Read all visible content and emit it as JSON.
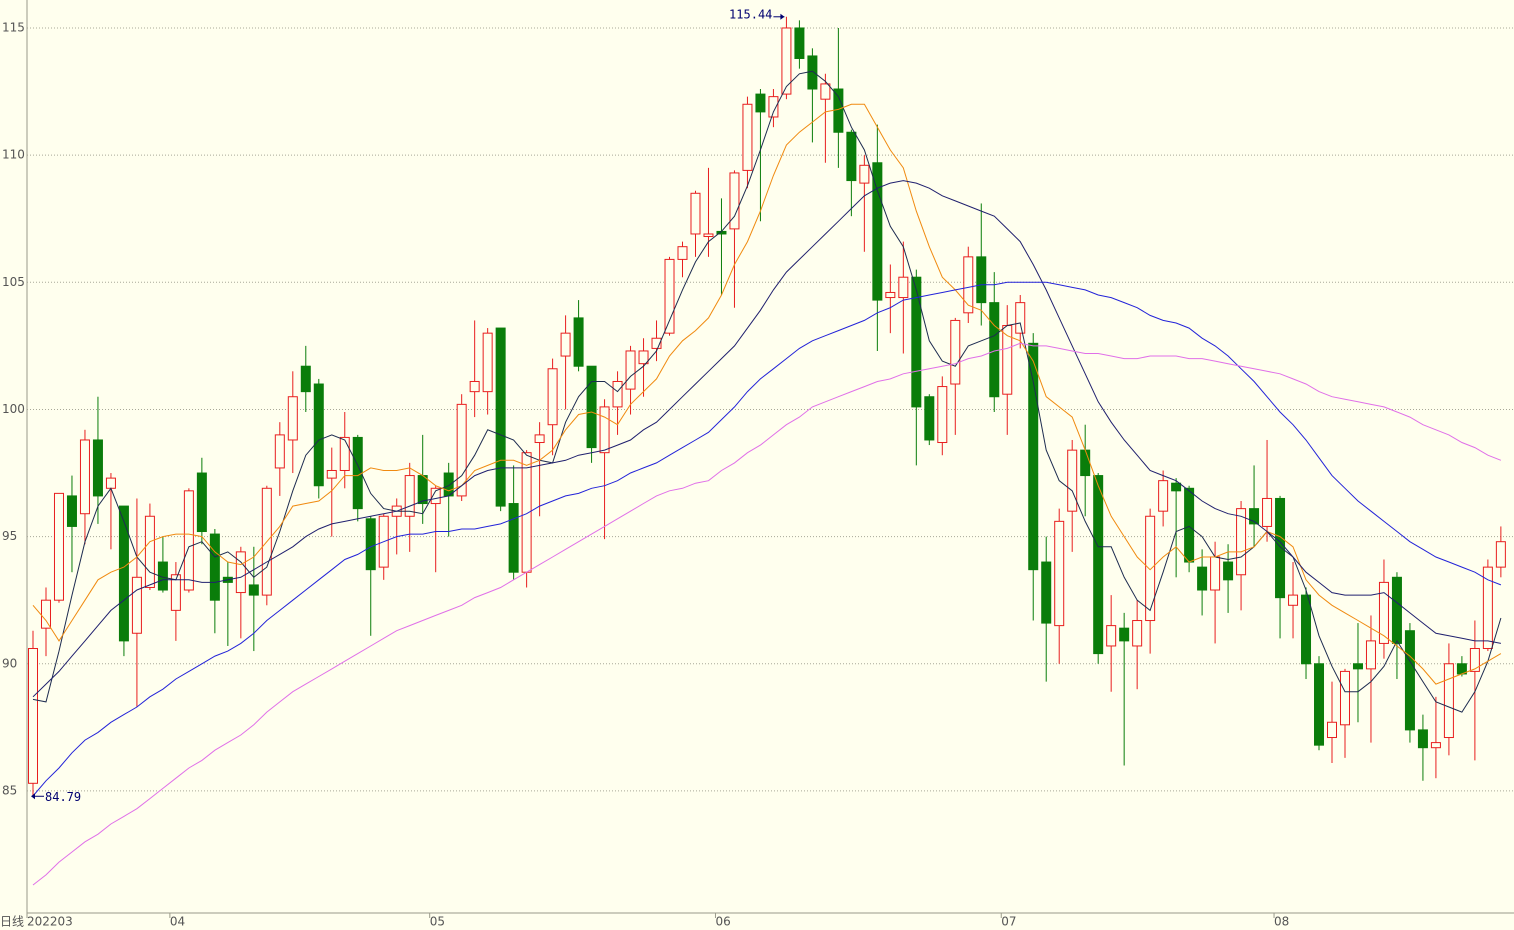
{
  "chart_data": {
    "type": "candlestick",
    "period_label": "日线",
    "categories": [
      "202203",
      null,
      null,
      null,
      null,
      null,
      null,
      null,
      null,
      null,
      null,
      "04",
      null,
      null,
      null,
      null,
      null,
      null,
      null,
      null,
      null,
      null,
      null,
      null,
      null,
      null,
      null,
      null,
      null,
      null,
      null,
      "05",
      null,
      null,
      null,
      null,
      null,
      null,
      null,
      null,
      null,
      null,
      null,
      null,
      null,
      null,
      null,
      null,
      null,
      null,
      null,
      null,
      null,
      "06",
      null,
      null,
      null,
      null,
      null,
      null,
      null,
      null,
      null,
      null,
      null,
      null,
      null,
      null,
      null,
      null,
      null,
      null,
      null,
      null,
      null,
      "07",
      null,
      null,
      null,
      null,
      null,
      null,
      null,
      null,
      null,
      null,
      null,
      null,
      null,
      null,
      null,
      null,
      null,
      null,
      null,
      null,
      "08",
      null,
      null,
      null,
      null,
      null,
      null,
      null,
      null,
      null,
      null,
      null,
      null,
      null,
      null,
      null,
      null,
      null
    ],
    "open": [
      85.3,
      91.4,
      92.5,
      96.6,
      95.9,
      98.8,
      96.9,
      96.2,
      91.2,
      93.0,
      94.0,
      92.1,
      92.9,
      97.5,
      95.1,
      93.4,
      92.8,
      93.1,
      92.7,
      97.7,
      98.8,
      101.7,
      101.0,
      97.3,
      97.6,
      98.9,
      95.7,
      93.8,
      95.8,
      95.8,
      97.4,
      96.3,
      97.5,
      96.6,
      100.7,
      100.7,
      103.2,
      96.3,
      93.6,
      98.7,
      99.4,
      102.1,
      103.6,
      101.7,
      98.3,
      100.1,
      100.8,
      101.8,
      102.4,
      103.0,
      105.9,
      106.9,
      106.8,
      107.0,
      107.1,
      109.4,
      112.4,
      111.5,
      112.4,
      115.0,
      113.9,
      112.2,
      112.6,
      110.9,
      108.9,
      109.7,
      104.4,
      104.4,
      105.2,
      100.5,
      98.7,
      101.0,
      103.8,
      106.0,
      104.2,
      100.6,
      103.0,
      102.6,
      94.0,
      91.5,
      96.0,
      98.4,
      97.4,
      90.7,
      91.4,
      90.7,
      91.7,
      96.0,
      97.1,
      96.9,
      93.8,
      92.9,
      94.0,
      93.5,
      96.1,
      95.4,
      96.5,
      92.3,
      92.7,
      90.0,
      87.1,
      87.6,
      90.0,
      89.8,
      90.8,
      93.4,
      91.3,
      87.4,
      86.7,
      87.1,
      90.0,
      89.7,
      90.6,
      93.8
    ],
    "high": [
      91.3,
      93.0,
      96.7,
      97.4,
      99.2,
      100.5,
      97.5,
      96.2,
      96.5,
      96.3,
      95.0,
      94.0,
      96.9,
      98.1,
      95.3,
      94.0,
      94.6,
      94.6,
      97.0,
      99.5,
      101.5,
      102.5,
      101.2,
      98.5,
      99.9,
      99.0,
      95.8,
      95.9,
      96.5,
      97.9,
      99.0,
      97.0,
      97.9,
      100.6,
      103.5,
      103.2,
      103.2,
      97.8,
      98.4,
      99.5,
      102.0,
      103.7,
      104.3,
      101.7,
      100.4,
      101.5,
      102.5,
      102.8,
      103.5,
      106.0,
      106.6,
      108.6,
      109.5,
      108.3,
      109.4,
      112.3,
      112.6,
      112.6,
      115.44,
      115.3,
      114.2,
      113.2,
      115.0,
      111.0,
      110.0,
      111.2,
      105.7,
      106.6,
      105.5,
      100.6,
      101.3,
      103.6,
      106.4,
      108.1,
      105.4,
      104.1,
      104.5,
      103.0,
      95.0,
      96.1,
      98.8,
      99.4,
      97.5,
      92.7,
      92.0,
      92.5,
      96.1,
      97.6,
      97.3,
      97.0,
      94.5,
      94.8,
      94.7,
      96.4,
      97.8,
      98.8,
      96.6,
      94.0,
      93.0,
      90.3,
      89.3,
      89.8,
      91.6,
      91.9,
      94.1,
      93.6,
      91.6,
      88.0,
      88.7,
      90.8,
      90.3,
      91.7,
      94.1,
      95.4
    ],
    "low": [
      84.79,
      90.3,
      92.4,
      93.6,
      94.7,
      95.5,
      94.5,
      90.3,
      88.3,
      92.9,
      92.8,
      90.9,
      92.8,
      94.7,
      91.2,
      90.7,
      91.0,
      90.5,
      92.3,
      96.6,
      97.5,
      99.9,
      96.5,
      95.0,
      96.9,
      95.6,
      91.1,
      93.3,
      94.3,
      94.4,
      95.5,
      93.6,
      95.0,
      96.4,
      99.7,
      99.8,
      96.0,
      93.3,
      93.0,
      95.8,
      98.2,
      100.0,
      101.5,
      97.9,
      94.9,
      99.0,
      99.8,
      100.5,
      101.9,
      102.9,
      105.2,
      106.0,
      106.0,
      104.5,
      104.0,
      108.7,
      107.4,
      111.1,
      112.2,
      113.4,
      110.5,
      109.7,
      109.5,
      107.6,
      106.2,
      102.3,
      103.0,
      102.2,
      97.8,
      98.6,
      98.2,
      99.0,
      103.4,
      103.3,
      99.9,
      99.0,
      102.4,
      91.7,
      89.3,
      90.0,
      94.4,
      95.8,
      90.0,
      88.9,
      86.0,
      89.0,
      90.4,
      95.4,
      93.4,
      93.6,
      91.9,
      90.8,
      92.0,
      92.1,
      94.6,
      94.8,
      91.0,
      91.0,
      89.4,
      86.6,
      86.1,
      86.3,
      87.7,
      86.9,
      90.2,
      89.4,
      86.9,
      85.4,
      85.5,
      86.4,
      89.5,
      86.2,
      90.5,
      93.4
    ],
    "close": [
      90.6,
      92.5,
      96.7,
      95.4,
      98.8,
      96.6,
      97.3,
      90.9,
      93.4,
      95.8,
      92.9,
      93.5,
      96.8,
      95.2,
      92.5,
      93.2,
      94.4,
      92.7,
      96.9,
      99.0,
      100.5,
      100.7,
      97.0,
      97.6,
      98.9,
      96.1,
      93.7,
      95.8,
      96.2,
      97.4,
      96.3,
      96.9,
      96.6,
      100.2,
      101.1,
      103.0,
      96.2,
      93.6,
      98.3,
      99.0,
      101.6,
      103.0,
      101.7,
      98.5,
      100.1,
      101.1,
      102.3,
      102.3,
      102.8,
      105.9,
      106.4,
      108.5,
      106.9,
      106.9,
      109.3,
      112.0,
      111.7,
      112.3,
      115.0,
      113.8,
      112.6,
      112.8,
      110.9,
      109.0,
      109.6,
      104.3,
      104.6,
      105.2,
      100.1,
      98.8,
      100.9,
      103.5,
      106.0,
      104.2,
      100.5,
      103.3,
      104.2,
      93.7,
      91.6,
      95.6,
      98.4,
      97.4,
      90.4,
      91.5,
      90.9,
      91.7,
      95.8,
      97.2,
      96.8,
      94.0,
      92.9,
      94.2,
      93.3,
      96.1,
      95.5,
      96.5,
      92.6,
      92.7,
      90.0,
      86.8,
      87.7,
      89.7,
      89.8,
      90.9,
      93.2,
      90.8,
      87.4,
      86.7,
      86.9,
      90.0,
      89.6,
      90.6,
      93.8,
      94.8
    ],
    "up_color": "#e81e1e",
    "down_color": "#0a7d0a",
    "lines": [
      {
        "color": "#1e2c50",
        "values": [
          88.6,
          88.5,
          90.5,
          92.7,
          94.8,
          96.2,
          96.9,
          95.6,
          94.2,
          93.6,
          93.4,
          93.3,
          94.6,
          94.8,
          94.2,
          94.4,
          94.0,
          93.4,
          93.8,
          95.2,
          96.8,
          98.2,
          98.8,
          99.0,
          98.8,
          97.8,
          96.7,
          96.1,
          96.0,
          96.0,
          95.9,
          96.8,
          97.0,
          97.4,
          98.2,
          99.2,
          99.0,
          98.8,
          98.2,
          98.0,
          97.9,
          99.5,
          100.5,
          101.1,
          101.1,
          100.7,
          101.3,
          101.7,
          102.3,
          103.5,
          104.7,
          105.8,
          106.6,
          107.0,
          107.6,
          108.8,
          110.2,
          111.7,
          112.7,
          113.2,
          113.3,
          112.9,
          112.3,
          111.1,
          110.2,
          108.6,
          107.2,
          106.4,
          104.7,
          102.7,
          101.9,
          101.7,
          102.5,
          102.7,
          102.9,
          103.3,
          103.4,
          101.1,
          98.4,
          97.2,
          96.8,
          95.6,
          94.6,
          94.6,
          93.4,
          92.5,
          92.1,
          93.6,
          95.2,
          95.4,
          95.0,
          94.2,
          94.1,
          94.2,
          94.6,
          95.2,
          94.6,
          94.2,
          92.9,
          91.1,
          89.9,
          88.9,
          88.9,
          89.3,
          89.9,
          90.9,
          90.1,
          89.3,
          88.5,
          88.3,
          88.1,
          88.9,
          90.1,
          91.8
        ]
      },
      {
        "color": "#f08a10",
        "values": [
          92.3,
          91.7,
          90.9,
          91.7,
          92.5,
          93.3,
          93.6,
          93.8,
          94.2,
          94.8,
          95.0,
          95.1,
          95.1,
          95.0,
          94.4,
          94.0,
          93.9,
          94.2,
          94.8,
          95.4,
          96.2,
          96.3,
          96.4,
          96.8,
          97.4,
          97.4,
          97.7,
          97.6,
          97.6,
          97.7,
          97.4,
          97.0,
          96.8,
          97.0,
          97.6,
          97.8,
          98.0,
          98.0,
          97.8,
          98.0,
          98.4,
          99.2,
          99.8,
          99.9,
          99.7,
          99.4,
          100.2,
          100.7,
          101.2,
          102.1,
          102.7,
          103.1,
          103.6,
          104.5,
          105.7,
          106.6,
          107.8,
          109.2,
          110.4,
          110.9,
          111.3,
          111.7,
          111.8,
          112.0,
          112.0,
          111.1,
          110.2,
          109.5,
          107.8,
          106.4,
          105.2,
          104.7,
          104.1,
          103.9,
          103.3,
          102.9,
          102.7,
          101.9,
          100.5,
          100.1,
          99.7,
          98.4,
          97.0,
          95.8,
          95.0,
          94.2,
          93.7,
          94.2,
          94.6,
          94.0,
          94.2,
          94.2,
          94.4,
          94.4,
          94.6,
          95.2,
          95.0,
          94.6,
          93.3,
          92.7,
          92.3,
          92.0,
          91.7,
          91.4,
          91.1,
          90.7,
          90.3,
          89.8,
          89.2,
          89.4,
          89.6,
          89.8,
          90.1,
          90.4
        ]
      },
      {
        "color": "#20206e",
        "values": [
          88.7,
          89.2,
          89.7,
          90.3,
          90.9,
          91.5,
          92.1,
          92.5,
          92.9,
          93.1,
          93.3,
          93.3,
          93.3,
          93.2,
          93.2,
          93.3,
          93.4,
          93.7,
          94.0,
          94.3,
          94.6,
          95.0,
          95.3,
          95.5,
          95.6,
          95.7,
          95.8,
          95.9,
          96.0,
          96.2,
          96.4,
          96.5,
          96.6,
          97.0,
          97.4,
          97.6,
          97.7,
          97.7,
          97.7,
          97.8,
          97.9,
          98.0,
          98.2,
          98.3,
          98.4,
          98.6,
          98.8,
          99.2,
          99.5,
          100.0,
          100.5,
          101.0,
          101.5,
          102.0,
          102.5,
          103.2,
          103.9,
          104.7,
          105.4,
          105.9,
          106.4,
          106.9,
          107.4,
          107.9,
          108.4,
          108.7,
          108.9,
          109.0,
          108.9,
          108.7,
          108.4,
          108.2,
          108.0,
          107.8,
          107.6,
          107.1,
          106.6,
          105.7,
          104.7,
          103.6,
          102.5,
          101.4,
          100.3,
          99.5,
          98.8,
          98.2,
          97.6,
          97.4,
          97.2,
          96.8,
          96.4,
          96.1,
          95.9,
          95.8,
          95.6,
          95.2,
          94.8,
          94.2,
          93.6,
          93.2,
          92.8,
          92.7,
          92.7,
          92.7,
          92.8,
          92.4,
          92.0,
          91.6,
          91.2,
          91.1,
          91.0,
          90.9,
          90.9,
          90.8
        ]
      },
      {
        "color": "#2323d8",
        "values": [
          84.8,
          85.4,
          85.9,
          86.5,
          87.0,
          87.3,
          87.7,
          88.0,
          88.3,
          88.7,
          89.0,
          89.4,
          89.7,
          90.0,
          90.3,
          90.5,
          90.8,
          91.2,
          91.7,
          92.1,
          92.5,
          92.9,
          93.3,
          93.7,
          94.1,
          94.3,
          94.6,
          94.8,
          95.0,
          95.1,
          95.1,
          95.2,
          95.2,
          95.3,
          95.3,
          95.4,
          95.5,
          95.7,
          95.9,
          96.2,
          96.4,
          96.6,
          96.7,
          96.9,
          97.0,
          97.2,
          97.5,
          97.7,
          97.9,
          98.2,
          98.5,
          98.8,
          99.1,
          99.6,
          100.1,
          100.7,
          101.2,
          101.6,
          102.0,
          102.4,
          102.7,
          102.9,
          103.1,
          103.3,
          103.5,
          103.8,
          104.0,
          104.3,
          104.4,
          104.5,
          104.6,
          104.7,
          104.8,
          104.9,
          104.9,
          105.0,
          105.0,
          105.0,
          105.0,
          104.9,
          104.8,
          104.7,
          104.5,
          104.4,
          104.2,
          104.0,
          103.7,
          103.5,
          103.4,
          103.2,
          102.8,
          102.5,
          102.1,
          101.6,
          101.1,
          100.5,
          99.9,
          99.4,
          98.8,
          98.1,
          97.4,
          96.9,
          96.4,
          96.0,
          95.6,
          95.2,
          94.8,
          94.5,
          94.2,
          94.0,
          93.8,
          93.6,
          93.3,
          93.1
        ]
      },
      {
        "color": "#e070e8",
        "values": [
          81.3,
          81.7,
          82.2,
          82.6,
          83.0,
          83.3,
          83.7,
          84.0,
          84.3,
          84.7,
          85.1,
          85.5,
          85.9,
          86.2,
          86.6,
          86.9,
          87.2,
          87.6,
          88.1,
          88.5,
          88.9,
          89.2,
          89.5,
          89.8,
          90.1,
          90.4,
          90.7,
          91.0,
          91.3,
          91.5,
          91.7,
          91.9,
          92.1,
          92.3,
          92.6,
          92.8,
          93.0,
          93.3,
          93.6,
          93.9,
          94.2,
          94.5,
          94.8,
          95.1,
          95.4,
          95.7,
          96.0,
          96.3,
          96.6,
          96.8,
          96.9,
          97.1,
          97.2,
          97.6,
          97.9,
          98.3,
          98.6,
          99.0,
          99.4,
          99.7,
          100.1,
          100.3,
          100.5,
          100.7,
          100.9,
          101.1,
          101.2,
          101.4,
          101.5,
          101.6,
          101.7,
          101.8,
          102.0,
          102.1,
          102.3,
          102.4,
          102.6,
          102.5,
          102.5,
          102.4,
          102.3,
          102.2,
          102.2,
          102.1,
          102.0,
          102.0,
          102.1,
          102.1,
          102.1,
          102.0,
          102.0,
          101.9,
          101.8,
          101.7,
          101.6,
          101.5,
          101.4,
          101.2,
          101.0,
          100.7,
          100.5,
          100.4,
          100.3,
          100.2,
          100.1,
          99.9,
          99.7,
          99.4,
          99.2,
          99.0,
          98.7,
          98.5,
          98.2,
          98.0
        ]
      }
    ],
    "ylim": [
      80.2,
      116.1
    ],
    "yticks": [
      85,
      90,
      95,
      100,
      105,
      110,
      115
    ],
    "grid": true
  }
}
